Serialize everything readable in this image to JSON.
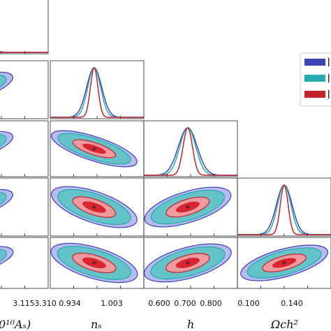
{
  "chart_data": {
    "type": "triangle-corner-plot",
    "grid": false,
    "legend_placement": "right",
    "parameters": [
      {
        "id": "lnAs",
        "label": "0¹⁰Aₛ)",
        "ticks": [
          "3.115",
          "3.310"
        ],
        "range": [
          3.02,
          3.33
        ],
        "mean": 3.07,
        "sigma": 0.032
      },
      {
        "id": "ns",
        "label": "nₛ",
        "ticks": [
          "0.934",
          "1.003"
        ],
        "range": [
          0.905,
          1.035
        ],
        "mean": 0.966,
        "sigma": 0.0105
      },
      {
        "id": "h",
        "label": "h",
        "ticks": [
          "0.600",
          "0.700",
          "0.800"
        ],
        "range": [
          0.555,
          0.815
        ],
        "mean": 0.677,
        "sigma": 0.026
      },
      {
        "id": "omch2",
        "label": "Ωch²",
        "ticks": [
          "0.100",
          "0.140"
        ],
        "range": [
          0.075,
          0.165
        ],
        "mean": 0.12,
        "sigma": 0.0075
      }
    ],
    "series": [
      {
        "color": "#3b45b3",
        "sigma_scale": 1.0,
        "fill_outer": "#b7bbef",
        "fill_inner": "#6d74d6"
      },
      {
        "color": "#27a9b0",
        "sigma_scale": 0.85,
        "fill_outer": "#63c3c8",
        "fill_inner": "#2aa2a9"
      },
      {
        "color": "#c4212b",
        "sigma_scale": 0.5,
        "fill_outer": "#ee9ba0",
        "fill_inner": "#d9252f"
      }
    ],
    "correlations": {
      "ns|lnAs": 0.97,
      "h|lnAs": 0.97,
      "h|ns": 0.97,
      "omch2|lnAs": 0.97,
      "omch2|ns": -0.95,
      "omch2|h": -0.95
    },
    "orientation": {
      "ns|lnAs": 1,
      "h|lnAs": 1,
      "h|ns": -1,
      "omch2|lnAs": 1,
      "omch2|ns": -1,
      "omch2|h": 1
    }
  }
}
